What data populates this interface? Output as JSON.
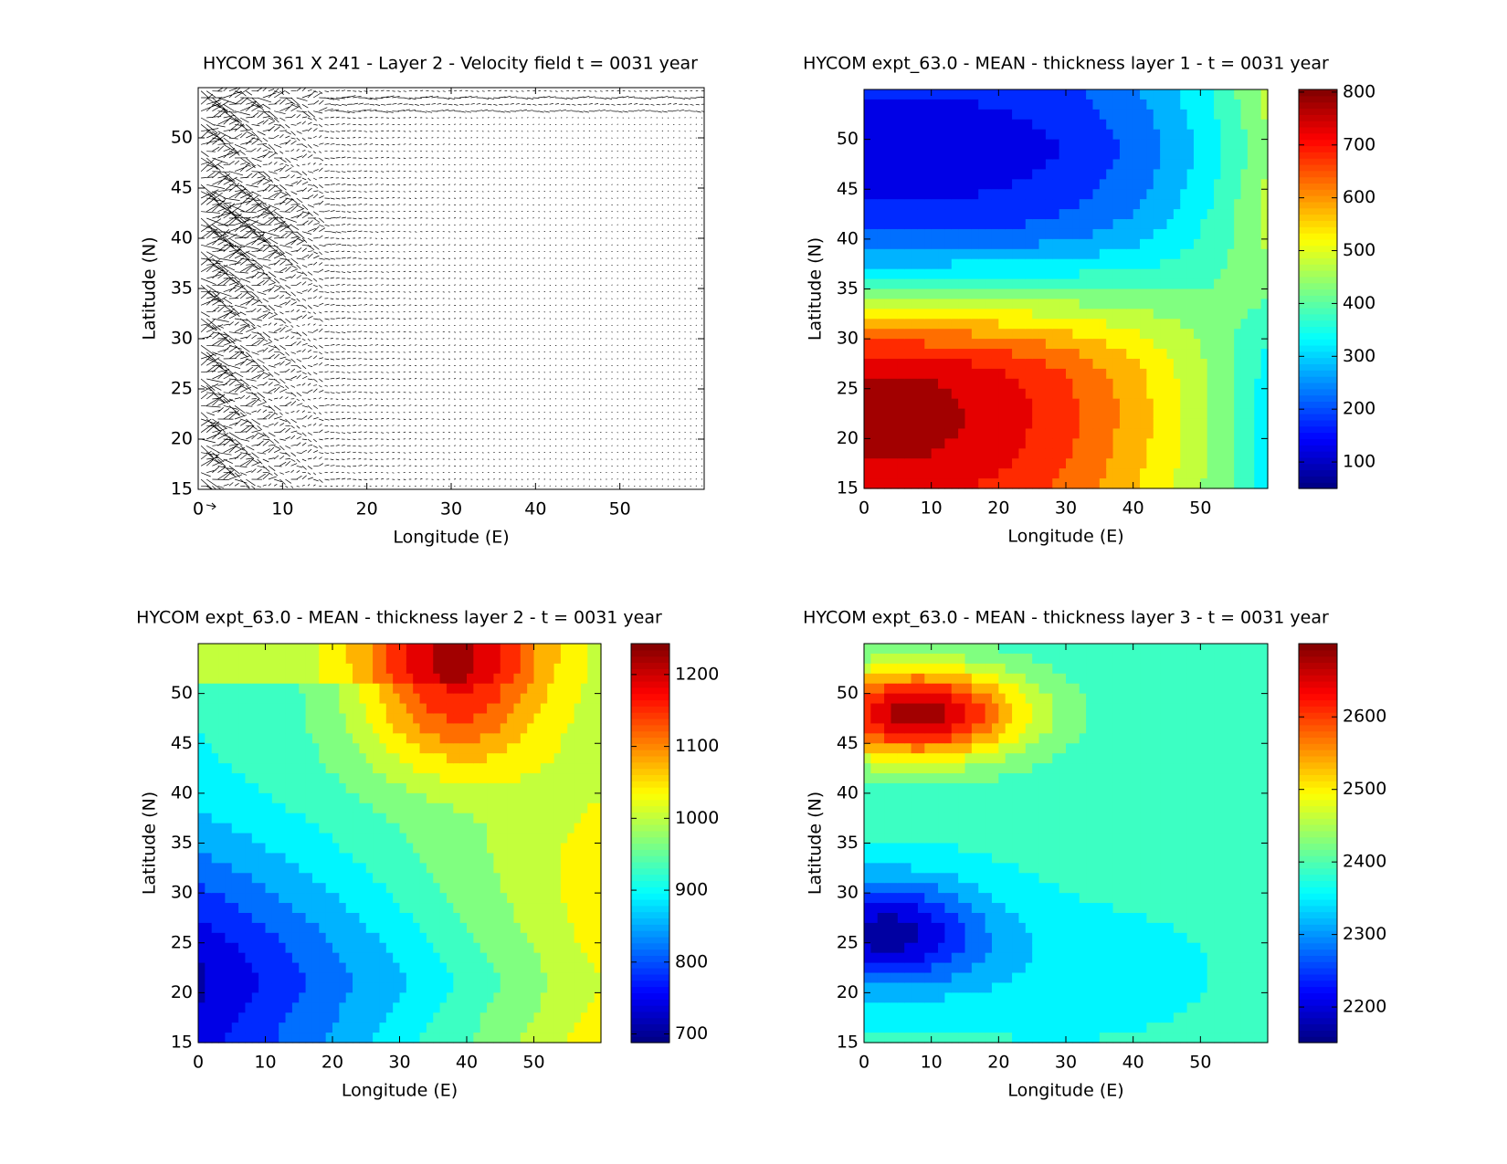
{
  "chart_data": [
    {
      "type": "quiver",
      "title": "HYCOM 361 X 241 - Layer 2 - Velocity field  t = 0031 year",
      "x_label": "Longitude (E)",
      "y_label": "Latitude (N)",
      "xlim": [
        0,
        60
      ],
      "ylim": [
        15,
        55
      ],
      "xticks": [
        0,
        10,
        20,
        30,
        40,
        50
      ],
      "yticks": [
        15,
        20,
        25,
        30,
        35,
        40,
        45,
        50
      ]
    },
    {
      "type": "contourf",
      "title": "HYCOM expt_63.0 - MEAN - thickness layer 1 - t = 0031 year",
      "x_label": "Longitude (E)",
      "y_label": "Latitude (N)",
      "xlim": [
        0,
        60
      ],
      "ylim": [
        15,
        55
      ],
      "xticks": [
        0,
        10,
        20,
        30,
        40,
        50
      ],
      "yticks": [
        15,
        20,
        25,
        30,
        35,
        40,
        45,
        50
      ],
      "colormap": "jet",
      "clim": [
        50,
        805
      ],
      "cticks": [
        100,
        200,
        300,
        400,
        500,
        600,
        700,
        800
      ]
    },
    {
      "type": "contourf",
      "title": "HYCOM expt_63.0 - MEAN - thickness layer 2 - t = 0031 year",
      "x_label": "Longitude (E)",
      "y_label": "Latitude (N)",
      "xlim": [
        0,
        60
      ],
      "ylim": [
        15,
        55
      ],
      "xticks": [
        0,
        10,
        20,
        30,
        40,
        50
      ],
      "yticks": [
        15,
        20,
        25,
        30,
        35,
        40,
        45,
        50
      ],
      "colormap": "jet",
      "clim": [
        688,
        1243
      ],
      "cticks": [
        700,
        800,
        900,
        1000,
        1100,
        1200
      ]
    },
    {
      "type": "contourf",
      "title": "HYCOM expt_63.0 - MEAN - thickness layer 3 - t = 0031 year",
      "x_label": "Longitude (E)",
      "y_label": "Latitude (N)",
      "xlim": [
        0,
        60
      ],
      "ylim": [
        15,
        55
      ],
      "xticks": [
        0,
        10,
        20,
        30,
        40,
        50
      ],
      "yticks": [
        15,
        20,
        25,
        30,
        35,
        40,
        45,
        50
      ],
      "colormap": "jet",
      "clim": [
        2151,
        2701
      ],
      "cticks": [
        2200,
        2300,
        2400,
        2500,
        2600
      ]
    }
  ]
}
